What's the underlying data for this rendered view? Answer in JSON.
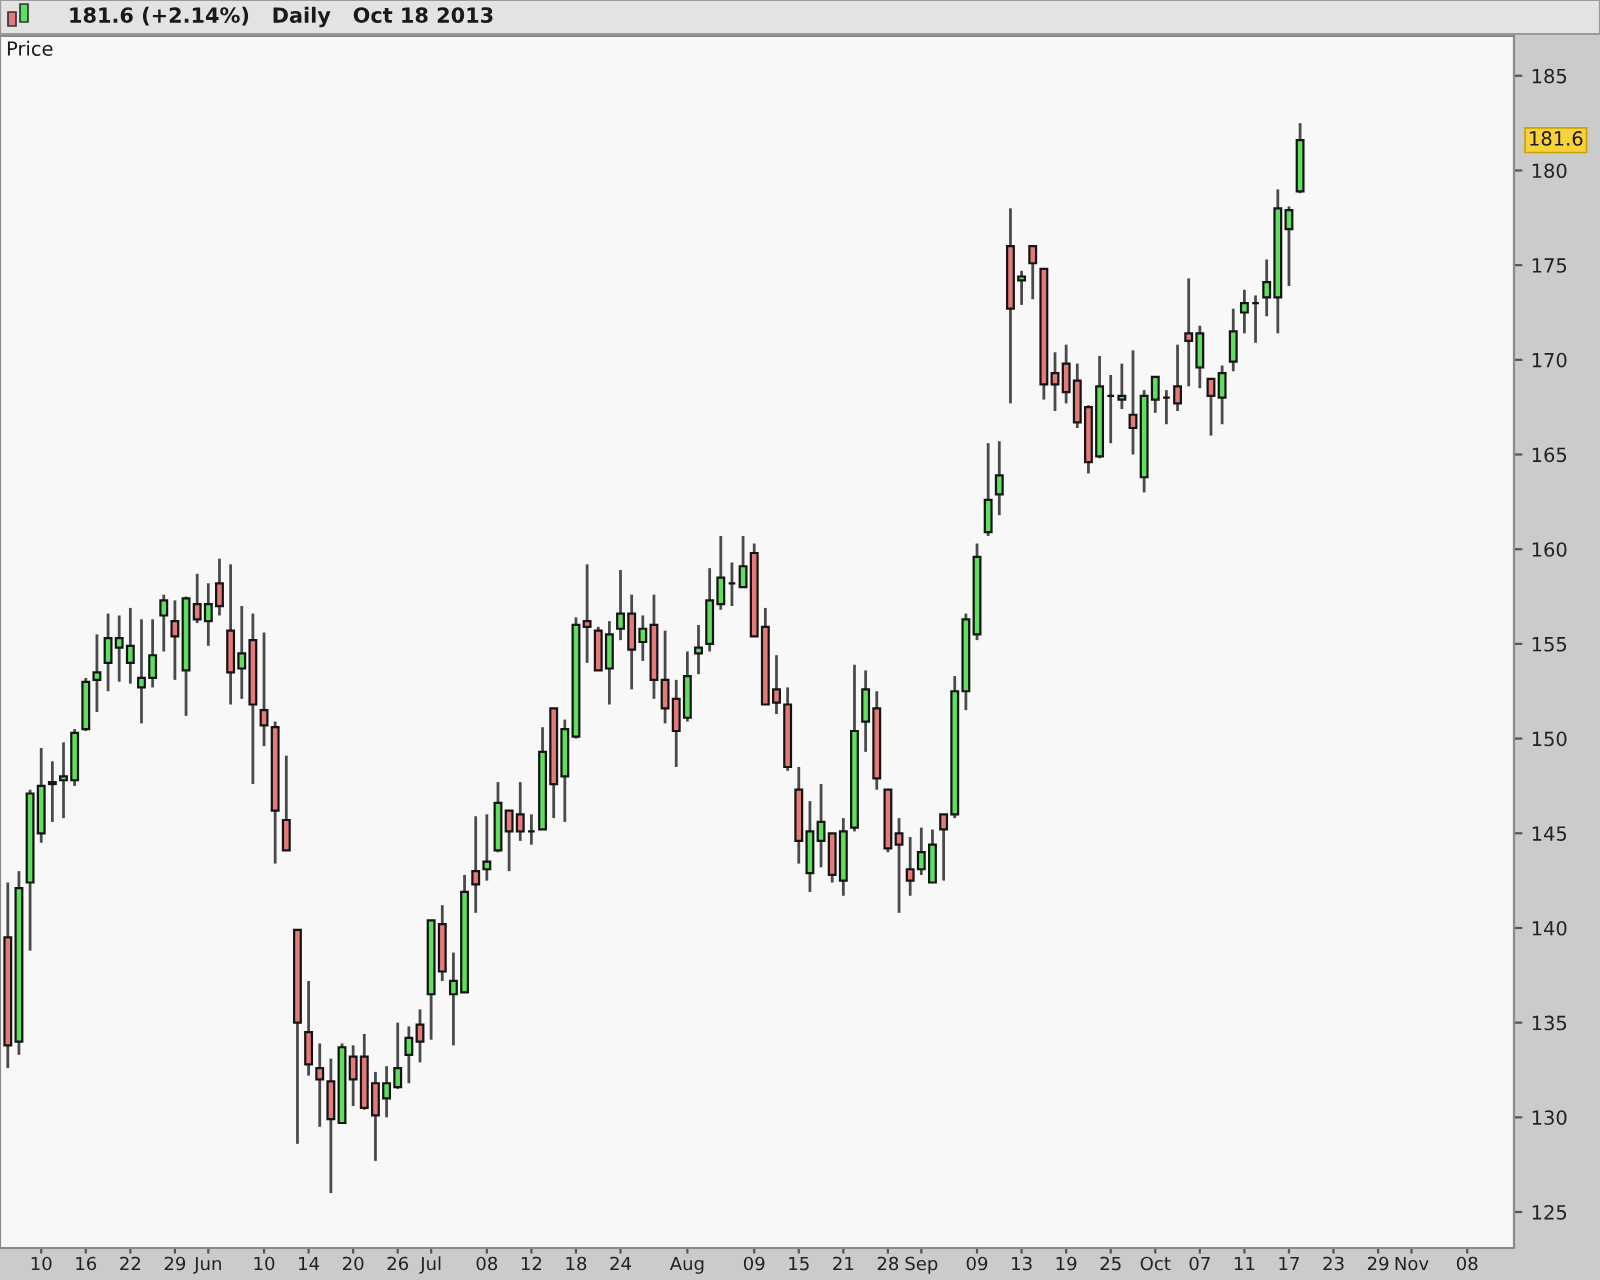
{
  "chart_data": {
    "type": "candlestick",
    "title": "181.6 (+2.14%)   Daily   Oct 18 2013",
    "ylabel": "Price",
    "categories": [
      null,
      null,
      null,
      "10",
      null,
      null,
      null,
      "16",
      null,
      null,
      null,
      "22",
      null,
      null,
      null,
      "29",
      null,
      null,
      "Jun",
      null,
      null,
      null,
      null,
      "10",
      null,
      null,
      null,
      "14",
      null,
      null,
      null,
      "20",
      null,
      null,
      null,
      "26",
      null,
      null,
      "Jul",
      null,
      null,
      null,
      null,
      "08",
      null,
      null,
      null,
      "12",
      null,
      null,
      null,
      "18",
      null,
      null,
      null,
      "24",
      null,
      null,
      null,
      null,
      null,
      "Aug",
      null,
      null,
      null,
      null,
      null,
      "09",
      null,
      null,
      null,
      "15",
      null,
      null,
      null,
      "21",
      null,
      null,
      null,
      "28",
      null,
      null,
      "Sep",
      null,
      null,
      null,
      null,
      "09",
      null,
      null,
      null,
      "13",
      null,
      null,
      null,
      "19",
      null,
      null,
      null,
      "25",
      null,
      null,
      null,
      "Oct",
      null,
      null,
      null,
      "07",
      null,
      null,
      null,
      "11",
      null,
      null,
      null,
      "17",
      null,
      null,
      null,
      "23",
      null,
      null,
      null,
      "29",
      null,
      null,
      "Nov",
      null,
      null,
      null,
      null,
      "08",
      null,
      null,
      null
    ],
    "ohlc": [
      [
        139.5,
        142.4,
        132.6,
        133.8
      ],
      [
        134.0,
        143.0,
        133.3,
        142.1
      ],
      [
        142.4,
        147.3,
        138.8,
        147.1
      ],
      [
        145.0,
        149.5,
        144.5,
        147.5
      ],
      [
        147.6,
        148.8,
        145.6,
        147.7
      ],
      [
        147.8,
        149.8,
        145.8,
        148.0
      ],
      [
        147.8,
        150.5,
        147.5,
        150.3
      ],
      [
        150.5,
        153.2,
        150.4,
        153.0
      ],
      [
        153.1,
        155.5,
        151.4,
        153.5
      ],
      [
        154.0,
        156.6,
        152.5,
        155.3
      ],
      [
        154.8,
        156.5,
        153.0,
        155.3
      ],
      [
        154.0,
        156.9,
        152.9,
        154.9
      ],
      [
        152.7,
        156.3,
        150.8,
        153.2
      ],
      [
        153.2,
        156.3,
        152.7,
        154.4
      ],
      [
        156.5,
        157.6,
        154.6,
        157.3
      ],
      [
        156.2,
        157.3,
        153.1,
        155.4
      ],
      [
        153.6,
        157.5,
        151.2,
        157.4
      ],
      [
        157.1,
        158.7,
        156.1,
        156.3
      ],
      [
        156.2,
        158.2,
        154.9,
        157.1
      ],
      [
        158.2,
        159.5,
        156.5,
        157.0
      ],
      [
        155.7,
        159.2,
        151.8,
        153.5
      ],
      [
        153.7,
        157.0,
        152.1,
        154.5
      ],
      [
        155.2,
        156.6,
        147.6,
        151.8
      ],
      [
        151.5,
        155.6,
        149.6,
        150.7
      ],
      [
        150.6,
        150.9,
        143.4,
        146.2
      ],
      [
        145.7,
        149.1,
        144.1,
        144.1
      ],
      [
        139.9,
        139.9,
        128.6,
        135.0
      ],
      [
        134.5,
        137.2,
        132.2,
        132.8
      ],
      [
        132.6,
        133.9,
        129.5,
        132.0
      ],
      [
        131.9,
        133.1,
        126.0,
        129.9
      ],
      [
        129.7,
        133.9,
        129.7,
        133.7
      ],
      [
        133.2,
        133.8,
        130.6,
        132.0
      ],
      [
        133.2,
        134.4,
        130.4,
        130.5
      ],
      [
        131.8,
        132.4,
        127.7,
        130.1
      ],
      [
        131.0,
        132.7,
        130.0,
        131.8
      ],
      [
        131.6,
        135.0,
        131.5,
        132.6
      ],
      [
        133.3,
        134.8,
        131.8,
        134.2
      ],
      [
        134.9,
        135.7,
        132.9,
        134.0
      ],
      [
        136.5,
        140.4,
        134.1,
        140.4
      ],
      [
        140.2,
        141.2,
        137.2,
        137.7
      ],
      [
        136.5,
        138.7,
        133.8,
        137.2
      ],
      [
        136.6,
        142.8,
        136.6,
        141.9
      ],
      [
        143.0,
        145.9,
        140.8,
        142.3
      ],
      [
        143.1,
        146.0,
        142.5,
        143.5
      ],
      [
        144.1,
        147.7,
        144.0,
        146.6
      ],
      [
        146.2,
        146.2,
        143.0,
        145.1
      ],
      [
        146.0,
        147.7,
        144.6,
        145.1
      ],
      [
        145.1,
        146.0,
        144.4,
        145.1
      ],
      [
        145.2,
        150.6,
        145.2,
        149.3
      ],
      [
        151.6,
        151.6,
        145.8,
        147.6
      ],
      [
        148.0,
        151.0,
        145.6,
        150.5
      ],
      [
        150.1,
        156.4,
        150.0,
        156.0
      ],
      [
        156.2,
        159.2,
        154.0,
        155.9
      ],
      [
        155.7,
        155.9,
        153.6,
        153.6
      ],
      [
        153.7,
        156.2,
        151.8,
        155.5
      ],
      [
        155.8,
        158.9,
        155.2,
        156.6
      ],
      [
        156.6,
        157.6,
        152.6,
        154.7
      ],
      [
        155.1,
        156.5,
        154.1,
        155.8
      ],
      [
        156.0,
        157.6,
        152.1,
        153.1
      ],
      [
        153.1,
        155.7,
        150.8,
        151.6
      ],
      [
        152.1,
        153.1,
        148.5,
        150.4
      ],
      [
        151.1,
        154.6,
        150.9,
        153.3
      ],
      [
        154.5,
        156.0,
        153.4,
        154.8
      ],
      [
        155.0,
        159.0,
        154.6,
        157.3
      ],
      [
        157.1,
        160.7,
        156.8,
        158.5
      ],
      [
        158.2,
        159.3,
        157.0,
        158.2
      ],
      [
        158.0,
        160.7,
        158.0,
        159.1
      ],
      [
        159.8,
        160.3,
        155.4,
        155.4
      ],
      [
        155.9,
        156.9,
        151.8,
        151.8
      ],
      [
        152.6,
        154.4,
        151.3,
        151.9
      ],
      [
        151.8,
        152.7,
        148.3,
        148.5
      ],
      [
        147.3,
        148.5,
        143.4,
        144.6
      ],
      [
        142.9,
        146.7,
        141.9,
        145.1
      ],
      [
        144.6,
        147.6,
        143.2,
        145.6
      ],
      [
        145.0,
        145.0,
        142.4,
        142.8
      ],
      [
        142.5,
        145.8,
        141.7,
        145.1
      ],
      [
        145.3,
        153.9,
        145.1,
        150.4
      ],
      [
        150.9,
        153.6,
        149.3,
        152.6
      ],
      [
        151.6,
        152.5,
        147.3,
        147.9
      ],
      [
        147.3,
        147.3,
        144.0,
        144.2
      ],
      [
        145.0,
        145.8,
        140.8,
        144.4
      ],
      [
        143.1,
        144.8,
        141.7,
        142.5
      ],
      [
        143.1,
        145.3,
        142.8,
        144.0
      ],
      [
        142.4,
        145.2,
        142.4,
        144.4
      ],
      [
        146.0,
        146.0,
        142.5,
        145.2
      ],
      [
        146.0,
        153.3,
        145.8,
        152.5
      ],
      [
        152.5,
        156.6,
        151.5,
        156.3
      ],
      [
        155.5,
        160.3,
        155.2,
        159.6
      ],
      [
        160.9,
        165.6,
        160.7,
        162.6
      ],
      [
        162.9,
        165.7,
        161.8,
        163.9
      ],
      [
        176.0,
        178.0,
        167.7,
        172.7
      ],
      [
        174.2,
        174.7,
        172.9,
        174.4
      ],
      [
        176.0,
        176.0,
        173.2,
        175.1
      ],
      [
        174.8,
        174.8,
        167.9,
        168.7
      ],
      [
        169.3,
        170.4,
        167.3,
        168.7
      ],
      [
        169.8,
        170.8,
        167.7,
        168.3
      ],
      [
        168.9,
        169.8,
        166.4,
        166.7
      ],
      [
        167.5,
        167.6,
        164.0,
        164.6
      ],
      [
        164.9,
        170.2,
        164.8,
        168.6
      ],
      [
        168.1,
        169.2,
        165.6,
        168.1
      ],
      [
        167.9,
        169.8,
        167.4,
        168.1
      ],
      [
        167.1,
        170.5,
        165.0,
        166.4
      ],
      [
        163.8,
        168.4,
        163.0,
        168.1
      ],
      [
        167.9,
        169.1,
        167.2,
        169.1
      ],
      [
        168.0,
        168.4,
        166.6,
        168.0
      ],
      [
        168.6,
        170.8,
        167.3,
        167.7
      ],
      [
        171.4,
        174.3,
        168.6,
        171.0
      ],
      [
        169.6,
        171.8,
        168.5,
        171.4
      ],
      [
        169.0,
        169.0,
        166.0,
        168.1
      ],
      [
        168.0,
        169.7,
        166.6,
        169.3
      ],
      [
        169.9,
        172.7,
        169.4,
        171.5
      ],
      [
        172.5,
        173.7,
        171.4,
        173.0
      ],
      [
        173.0,
        173.4,
        170.9,
        173.0
      ],
      [
        173.3,
        175.3,
        172.3,
        174.1
      ],
      [
        173.3,
        179.0,
        171.4,
        178.0
      ],
      [
        176.9,
        178.1,
        173.9,
        177.9
      ],
      [
        178.9,
        182.5,
        178.8,
        181.6
      ],
      null,
      null,
      null,
      null,
      null,
      null,
      null,
      null,
      null,
      null,
      null,
      null,
      null,
      null,
      null,
      null,
      null,
      null
    ],
    "ylim": [
      123.1,
      187.1
    ],
    "yticks": [
      125,
      130,
      135,
      140,
      145,
      150,
      155,
      160,
      165,
      170,
      175,
      180,
      185
    ],
    "annotations": [
      "181.6"
    ]
  }
}
